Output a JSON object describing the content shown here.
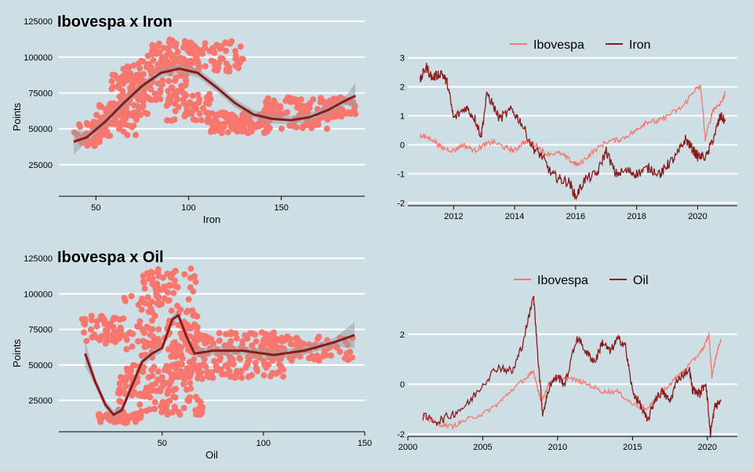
{
  "colors": {
    "background": "#cddee4",
    "ibovespa": "#f8766d",
    "commodity": "#8b1a1a",
    "band": "#9e9e9e",
    "grid": "#ffffff"
  },
  "chart_data": [
    {
      "type": "scatter",
      "title": "Ibovespa x Iron",
      "xlabel": "Iron",
      "ylabel": "Points",
      "xlim": [
        30,
        195
      ],
      "ylim": [
        3000,
        130000
      ],
      "xticks": [
        50,
        100,
        150
      ],
      "yticks": [
        25000,
        50000,
        75000,
        100000,
        125000
      ],
      "point_clusters": [
        {
          "xmin": 38,
          "xmax": 55,
          "ymin": 38000,
          "ymax": 55000,
          "n": 40
        },
        {
          "xmin": 50,
          "xmax": 72,
          "ymin": 45000,
          "ymax": 68000,
          "n": 70
        },
        {
          "xmin": 58,
          "xmax": 80,
          "ymin": 58000,
          "ymax": 88000,
          "n": 90
        },
        {
          "xmin": 62,
          "xmax": 100,
          "ymin": 70000,
          "ymax": 98000,
          "n": 110
        },
        {
          "xmin": 78,
          "xmax": 100,
          "ymin": 90000,
          "ymax": 113000,
          "n": 60
        },
        {
          "xmin": 100,
          "xmax": 130,
          "ymin": 90000,
          "ymax": 112000,
          "n": 70
        },
        {
          "xmin": 88,
          "xmax": 112,
          "ymin": 55000,
          "ymax": 75000,
          "n": 50
        },
        {
          "xmin": 110,
          "xmax": 145,
          "ymin": 47000,
          "ymax": 62000,
          "n": 110
        },
        {
          "xmin": 140,
          "xmax": 190,
          "ymin": 58000,
          "ymax": 72000,
          "n": 120
        },
        {
          "xmin": 150,
          "xmax": 175,
          "ymin": 50000,
          "ymax": 58000,
          "n": 30
        }
      ],
      "smooth": [
        [
          38,
          41000
        ],
        [
          45,
          44000
        ],
        [
          55,
          55000
        ],
        [
          65,
          68000
        ],
        [
          75,
          80000
        ],
        [
          85,
          89000
        ],
        [
          95,
          92000
        ],
        [
          105,
          89000
        ],
        [
          115,
          79000
        ],
        [
          125,
          68000
        ],
        [
          135,
          60000
        ],
        [
          145,
          57000
        ],
        [
          155,
          56000
        ],
        [
          165,
          58000
        ],
        [
          175,
          63000
        ],
        [
          185,
          70000
        ],
        [
          190,
          73000
        ]
      ]
    },
    {
      "type": "line",
      "legend": [
        "Ibovespa",
        "Iron"
      ],
      "legend_position": "top",
      "xlim": [
        2010.5,
        2021.3
      ],
      "ylim": [
        -2.1,
        3.1
      ],
      "xticks": [
        2012,
        2014,
        2016,
        2018,
        2020
      ],
      "yticks": [
        -2,
        -1,
        0,
        1,
        2,
        3
      ],
      "series": [
        {
          "name": "Ibovespa",
          "values": [
            [
              2010.9,
              0.3
            ],
            [
              2011.3,
              0.2
            ],
            [
              2011.6,
              -0.1
            ],
            [
              2012.0,
              -0.2
            ],
            [
              2012.3,
              0.0
            ],
            [
              2012.7,
              -0.2
            ],
            [
              2013.0,
              0.0
            ],
            [
              2013.3,
              0.1
            ],
            [
              2013.7,
              -0.1
            ],
            [
              2014.0,
              -0.2
            ],
            [
              2014.3,
              0.1
            ],
            [
              2014.7,
              0.0
            ],
            [
              2015.0,
              -0.3
            ],
            [
              2015.5,
              -0.3
            ],
            [
              2015.9,
              -0.6
            ],
            [
              2016.1,
              -0.7
            ],
            [
              2016.5,
              -0.3
            ],
            [
              2017.0,
              0.1
            ],
            [
              2017.5,
              0.2
            ],
            [
              2018.0,
              0.5
            ],
            [
              2018.3,
              0.8
            ],
            [
              2018.7,
              0.8
            ],
            [
              2019.0,
              1.0
            ],
            [
              2019.5,
              1.3
            ],
            [
              2019.9,
              1.9
            ],
            [
              2020.1,
              2.0
            ],
            [
              2020.25,
              0.2
            ],
            [
              2020.5,
              1.2
            ],
            [
              2020.8,
              1.5
            ],
            [
              2020.9,
              1.8
            ]
          ]
        },
        {
          "name": "Iron",
          "values": [
            [
              2010.9,
              2.2
            ],
            [
              2011.1,
              2.7
            ],
            [
              2011.3,
              2.3
            ],
            [
              2011.6,
              2.5
            ],
            [
              2011.8,
              2.1
            ],
            [
              2012.0,
              0.9
            ],
            [
              2012.4,
              1.3
            ],
            [
              2012.7,
              0.9
            ],
            [
              2012.9,
              0.3
            ],
            [
              2013.1,
              1.8
            ],
            [
              2013.5,
              0.9
            ],
            [
              2013.9,
              1.2
            ],
            [
              2014.2,
              0.8
            ],
            [
              2014.6,
              -0.1
            ],
            [
              2014.9,
              -0.4
            ],
            [
              2015.2,
              -1.0
            ],
            [
              2015.5,
              -1.2
            ],
            [
              2015.8,
              -1.3
            ],
            [
              2016.0,
              -1.8
            ],
            [
              2016.3,
              -1.2
            ],
            [
              2016.7,
              -1.0
            ],
            [
              2017.0,
              -0.2
            ],
            [
              2017.3,
              -1.0
            ],
            [
              2017.7,
              -0.9
            ],
            [
              2018.0,
              -1.0
            ],
            [
              2018.4,
              -0.8
            ],
            [
              2018.8,
              -1.0
            ],
            [
              2019.0,
              -0.7
            ],
            [
              2019.3,
              -0.4
            ],
            [
              2019.6,
              0.2
            ],
            [
              2019.8,
              -0.1
            ],
            [
              2020.0,
              -0.4
            ],
            [
              2020.3,
              -0.4
            ],
            [
              2020.6,
              0.5
            ],
            [
              2020.75,
              1.0
            ],
            [
              2020.9,
              0.8
            ]
          ]
        }
      ]
    },
    {
      "type": "scatter",
      "title": "Ibovespa x Oil",
      "xlabel": "Oil",
      "ylabel": "Points",
      "xlim": [
        -1,
        150
      ],
      "ylim": [
        3000,
        130000
      ],
      "xticks": [
        50,
        100,
        150
      ],
      "yticks": [
        25000,
        50000,
        75000,
        100000,
        125000
      ],
      "point_clusters": [
        {
          "xmin": 10,
          "xmax": 30,
          "ymin": 65000,
          "ymax": 85000,
          "n": 60
        },
        {
          "xmin": 18,
          "xmax": 40,
          "ymin": 9000,
          "ymax": 16000,
          "n": 60
        },
        {
          "xmin": 28,
          "xmax": 70,
          "ymin": 15000,
          "ymax": 50000,
          "n": 150
        },
        {
          "xmin": 40,
          "xmax": 68,
          "ymin": 55000,
          "ymax": 118000,
          "n": 120
        },
        {
          "xmin": 30,
          "xmax": 55,
          "ymin": 55000,
          "ymax": 100000,
          "n": 40
        },
        {
          "xmin": 55,
          "xmax": 110,
          "ymin": 40000,
          "ymax": 73000,
          "n": 220
        },
        {
          "xmin": 100,
          "xmax": 145,
          "ymin": 53000,
          "ymax": 70000,
          "n": 100
        }
      ],
      "smooth": [
        [
          12,
          58000
        ],
        [
          17,
          38000
        ],
        [
          22,
          22000
        ],
        [
          26,
          15000
        ],
        [
          30,
          18000
        ],
        [
          35,
          35000
        ],
        [
          40,
          52000
        ],
        [
          45,
          58000
        ],
        [
          50,
          62000
        ],
        [
          55,
          82000
        ],
        [
          58,
          85000
        ],
        [
          62,
          70000
        ],
        [
          66,
          58000
        ],
        [
          75,
          60000
        ],
        [
          90,
          60000
        ],
        [
          105,
          57000
        ],
        [
          120,
          60000
        ],
        [
          135,
          66000
        ],
        [
          145,
          71000
        ]
      ]
    },
    {
      "type": "line",
      "legend": [
        "Ibovespa",
        "Oil"
      ],
      "legend_position": "top",
      "xlim": [
        2000,
        2022
      ],
      "ylim": [
        -2.1,
        3.6
      ],
      "xticks": [
        2000,
        2005,
        2010,
        2015,
        2020
      ],
      "yticks": [
        -2,
        0,
        2
      ],
      "series": [
        {
          "name": "Ibovespa",
          "values": [
            [
              2001.0,
              -1.3
            ],
            [
              2002.0,
              -1.6
            ],
            [
              2003.0,
              -1.7
            ],
            [
              2004.0,
              -1.4
            ],
            [
              2005.0,
              -1.2
            ],
            [
              2006.0,
              -0.8
            ],
            [
              2007.0,
              -0.2
            ],
            [
              2008.0,
              0.3
            ],
            [
              2008.4,
              0.5
            ],
            [
              2008.9,
              -0.7
            ],
            [
              2009.5,
              0.1
            ],
            [
              2010.0,
              0.3
            ],
            [
              2011.0,
              0.2
            ],
            [
              2012.0,
              0.0
            ],
            [
              2013.0,
              -0.3
            ],
            [
              2014.0,
              -0.3
            ],
            [
              2015.0,
              -0.8
            ],
            [
              2016.0,
              -1.0
            ],
            [
              2017.0,
              -0.3
            ],
            [
              2018.0,
              0.3
            ],
            [
              2019.0,
              0.9
            ],
            [
              2019.8,
              1.5
            ],
            [
              2020.1,
              2.0
            ],
            [
              2020.3,
              0.3
            ],
            [
              2020.6,
              1.2
            ],
            [
              2020.9,
              1.8
            ]
          ]
        },
        {
          "name": "Oil",
          "values": [
            [
              2001.0,
              -1.3
            ],
            [
              2002.0,
              -1.5
            ],
            [
              2003.0,
              -1.2
            ],
            [
              2004.0,
              -0.8
            ],
            [
              2005.0,
              0.0
            ],
            [
              2006.0,
              0.7
            ],
            [
              2007.0,
              0.5
            ],
            [
              2007.6,
              1.5
            ],
            [
              2008.4,
              3.5
            ],
            [
              2008.7,
              1.0
            ],
            [
              2009.0,
              -1.2
            ],
            [
              2009.5,
              0.0
            ],
            [
              2010.0,
              0.3
            ],
            [
              2010.5,
              0.0
            ],
            [
              2011.3,
              1.9
            ],
            [
              2012.0,
              1.2
            ],
            [
              2012.5,
              0.9
            ],
            [
              2013.0,
              1.7
            ],
            [
              2013.5,
              1.3
            ],
            [
              2014.0,
              1.8
            ],
            [
              2014.5,
              1.6
            ],
            [
              2015.0,
              -0.3
            ],
            [
              2015.5,
              -0.8
            ],
            [
              2016.0,
              -1.5
            ],
            [
              2016.5,
              -0.6
            ],
            [
              2017.0,
              -0.3
            ],
            [
              2017.5,
              -0.7
            ],
            [
              2018.0,
              0.2
            ],
            [
              2018.8,
              0.6
            ],
            [
              2019.0,
              -0.2
            ],
            [
              2019.5,
              -0.4
            ],
            [
              2019.9,
              0.1
            ],
            [
              2020.2,
              -2.0
            ],
            [
              2020.5,
              -0.9
            ],
            [
              2020.9,
              -0.7
            ]
          ]
        }
      ]
    }
  ]
}
